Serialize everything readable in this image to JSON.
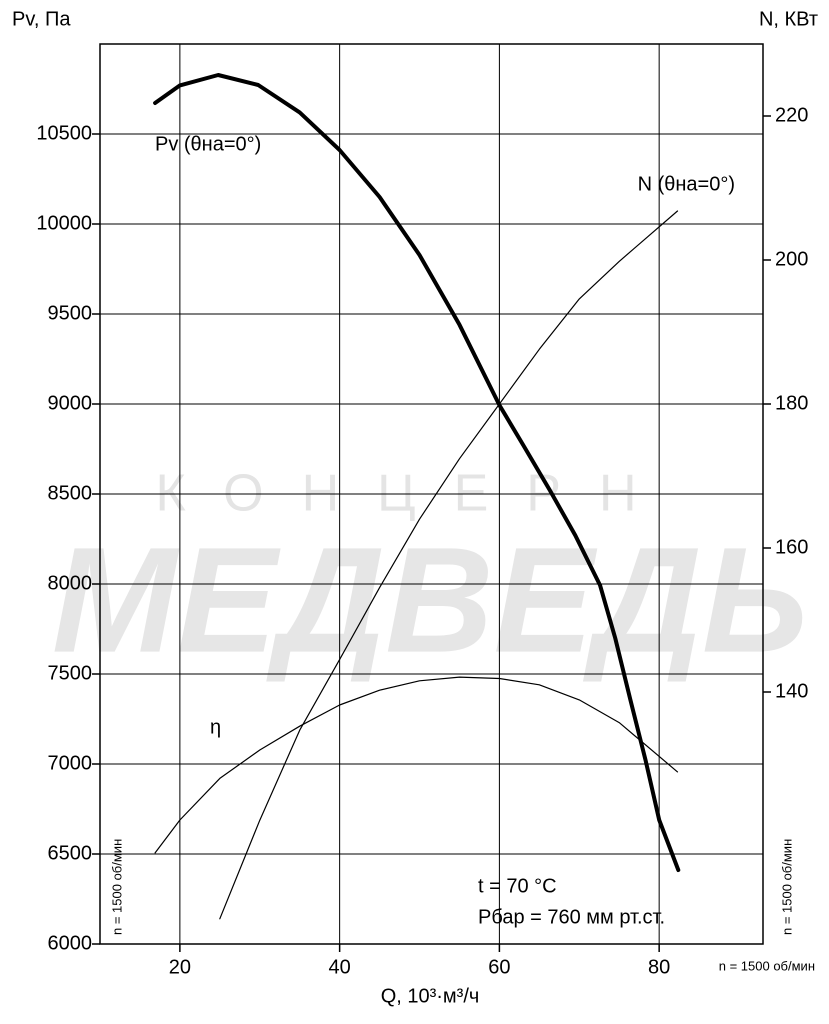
{
  "chart_data": {
    "type": "line",
    "y_label": "Pv, Па",
    "y2_label": "N, КВт",
    "x_label": "Q, 10³·м³/ч",
    "xlim": [
      10,
      93
    ],
    "xticks": [
      20,
      40,
      60,
      80
    ],
    "ylim": [
      6000,
      11000
    ],
    "yticks": [
      6000,
      6500,
      7000,
      7500,
      8000,
      8500,
      9000,
      9500,
      10000,
      10500
    ],
    "y2lim": [
      105,
      230
    ],
    "y2ticks": [
      140,
      160,
      180,
      200,
      220
    ],
    "grid": true,
    "series": [
      {
        "name": "Pv (θна=0°)",
        "color": "#000000",
        "width": 4,
        "x": [
          16.9,
          20,
          24.8,
          29.8,
          35,
          40,
          45,
          50,
          55,
          60,
          63,
          66.3,
          69.5,
          72.6,
          74.5,
          76.4,
          78.3,
          80,
          82.4
        ],
        "values": [
          10672,
          10770,
          10828,
          10772,
          10620,
          10411,
          10150,
          9828,
          9440,
          8994,
          8770,
          8522,
          8270,
          7994,
          7700,
          7356,
          7020,
          6689,
          6411
        ]
      },
      {
        "name": "N (θна=0°)",
        "color": "#000000",
        "width": 1.2,
        "axis": "y2",
        "x": [
          25,
          30,
          35,
          40,
          45,
          50,
          55,
          60,
          65,
          70,
          75,
          82.3
        ],
        "values": [
          108.5,
          122.2,
          134.7,
          144.5,
          154.5,
          164,
          172.4,
          180,
          187.6,
          194.6,
          199.8,
          206.8
        ]
      },
      {
        "name": "η",
        "color": "#000000",
        "width": 1.2,
        "x": [
          16.9,
          20,
          25,
          30,
          35,
          40,
          45,
          50,
          55,
          60,
          65,
          70,
          75,
          82.3
        ],
        "values": [
          6506,
          6689,
          6920,
          7078,
          7210,
          7328,
          7410,
          7462,
          7483,
          7475,
          7440,
          7356,
          7230,
          6956
        ]
      }
    ],
    "annotations": [
      "t = 70 °C",
      "Рбар = 760 мм рт.ст."
    ],
    "rpm_labels": [
      "n = 1500 об/мин",
      "n = 1500 об/мин",
      "n = 1500 об/мин"
    ],
    "watermark": [
      "КОНЦЕРН",
      "МЕДВЕДЬ"
    ]
  }
}
